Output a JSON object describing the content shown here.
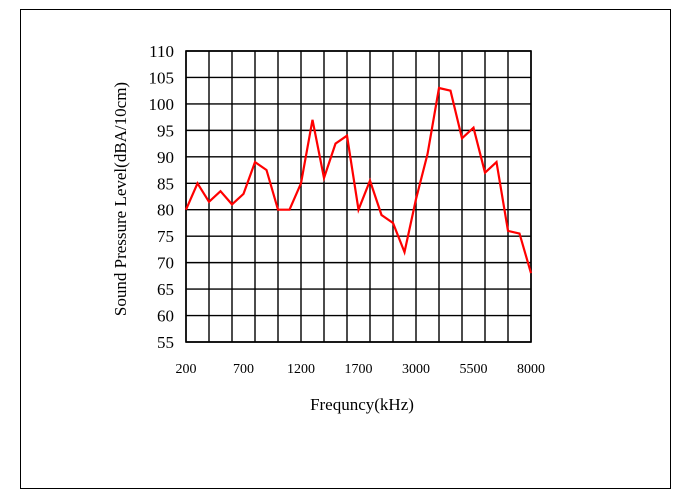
{
  "chart_data": {
    "type": "line",
    "title": "",
    "xlabel": "Frequncy(kHz)",
    "ylabel": "Sound Pressure Level(dBA/10cm)",
    "x_tick_labels": [
      "200",
      "700",
      "1200",
      "1700",
      "3000",
      "5500",
      "8000"
    ],
    "y_ticks": [
      55,
      60,
      65,
      70,
      75,
      80,
      85,
      90,
      95,
      100,
      105,
      110
    ],
    "ylim": [
      55,
      110
    ],
    "grid": true,
    "legend": "none",
    "series": [
      {
        "color": "#ff0000",
        "values": [
          80,
          85,
          81.5,
          83.5,
          81,
          83,
          89,
          87.5,
          80,
          80,
          85,
          97,
          86,
          92.5,
          94,
          80,
          85.5,
          79,
          77.5,
          72,
          82,
          90.5,
          103,
          102.5,
          93.5,
          95.5,
          87,
          89,
          76,
          75.5,
          68
        ]
      }
    ]
  }
}
